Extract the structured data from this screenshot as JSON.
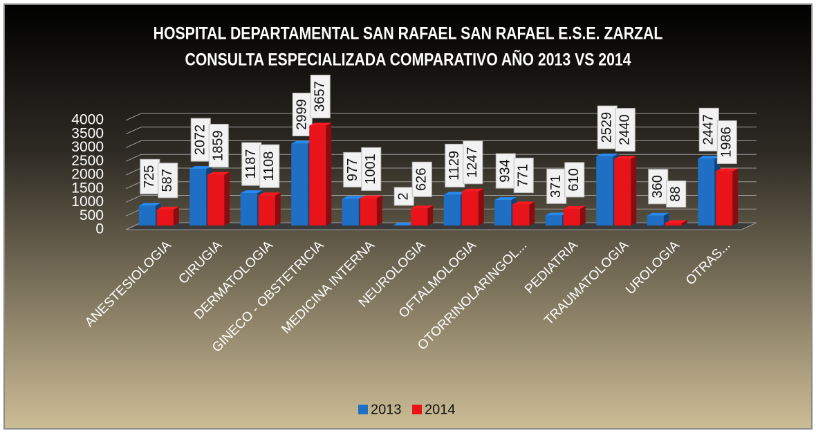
{
  "chart_data": {
    "type": "bar",
    "title": "HOSPITAL DEPARTAMENTAL SAN RAFAEL SAN RAFAEL  E.S.E. ZARZAL",
    "subtitle": "CONSULTA ESPECIALIZADA COMPARATIVO  AÑO 2013 VS 2014",
    "categories": [
      "ANESTESIOLOGIA",
      "CIRUGIA",
      "DERMATOLOGIA",
      "GINECO - OBSTETRICIA",
      "MEDICINA INTERNA",
      "NEUROLOGIA",
      "OFTALMOLOGIA",
      "OTORRINOLARINGOL...",
      "PEDIATRIA",
      "TRAUMATOLOGIA",
      "UROLOGIA",
      "OTRAS..."
    ],
    "series": [
      {
        "name": "2013",
        "color": "#1f6fc5",
        "values": [
          725,
          2072,
          1187,
          2999,
          977,
          2,
          1129,
          934,
          371,
          2529,
          360,
          2447
        ]
      },
      {
        "name": "2014",
        "color": "#e8141a",
        "values": [
          587,
          1859,
          1108,
          3657,
          1001,
          626,
          1247,
          771,
          610,
          2440,
          88,
          1986
        ]
      }
    ],
    "ylim": [
      0,
      4000
    ],
    "yticks": [
      0,
      500,
      1000,
      1500,
      2000,
      2500,
      3000,
      3500,
      4000
    ],
    "grid": true,
    "legend": "bottom"
  }
}
